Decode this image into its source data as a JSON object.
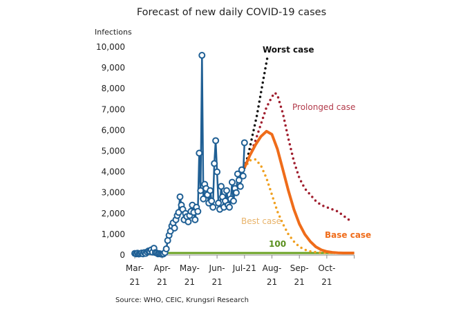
{
  "chart_data": {
    "type": "line",
    "title": "Forecast of new daily COVID-19 cases",
    "ylabel": "Infections",
    "xlabel": "",
    "ylim": [
      0,
      10000
    ],
    "yticks": [
      0,
      1000,
      2000,
      3000,
      4000,
      5000,
      6000,
      7000,
      8000,
      9000,
      10000
    ],
    "ytick_labels": [
      "0",
      "1,000",
      "2,000",
      "3,000",
      "4,000",
      "5,000",
      "6,000",
      "7,000",
      "8,000",
      "9,000",
      "10,000"
    ],
    "x_unit": "months since Mar-21",
    "xlim": [
      0,
      8
    ],
    "xticks": [
      0,
      1,
      2,
      3,
      4,
      5,
      6,
      7
    ],
    "xtick_labels": [
      [
        "Mar-",
        "21"
      ],
      [
        "Apr-",
        "21"
      ],
      [
        "May-",
        "21"
      ],
      [
        "Jun-",
        "21"
      ],
      [
        "Jul-21",
        ""
      ],
      [
        "Aug-",
        "21"
      ],
      [
        "Sep-",
        "21"
      ],
      [
        "Oct-",
        "21"
      ]
    ],
    "grid": false,
    "legend": "inline annotations",
    "series": [
      {
        "name": "Actual",
        "style": "line-with-circle-markers",
        "color": "#1f5f94",
        "x": [
          0.0,
          0.05,
          0.1,
          0.15,
          0.2,
          0.25,
          0.3,
          0.35,
          0.4,
          0.45,
          0.5,
          0.55,
          0.6,
          0.65,
          0.7,
          0.75,
          0.8,
          0.85,
          0.9,
          0.95,
          1.0,
          1.05,
          1.1,
          1.15,
          1.2,
          1.25,
          1.3,
          1.35,
          1.4,
          1.45,
          1.5,
          1.55,
          1.6,
          1.65,
          1.7,
          1.75,
          1.8,
          1.85,
          1.9,
          1.95,
          2.0,
          2.05,
          2.1,
          2.15,
          2.2,
          2.25,
          2.3,
          2.35,
          2.4,
          2.45,
          2.5,
          2.55,
          2.6,
          2.65,
          2.7,
          2.75,
          2.8,
          2.85,
          2.9,
          2.95,
          3.0,
          3.05,
          3.1,
          3.15,
          3.2,
          3.25,
          3.3,
          3.35,
          3.4,
          3.45,
          3.5,
          3.55,
          3.6,
          3.65,
          3.7,
          3.75,
          3.8,
          3.85,
          3.9,
          3.95,
          4.0
        ],
        "values": [
          80,
          60,
          90,
          50,
          70,
          100,
          60,
          120,
          80,
          150,
          200,
          180,
          250,
          140,
          330,
          120,
          100,
          60,
          70,
          50,
          40,
          60,
          120,
          300,
          700,
          950,
          1150,
          1400,
          1550,
          1300,
          1700,
          1900,
          2050,
          2800,
          2400,
          2200,
          1700,
          2000,
          1850,
          1600,
          1900,
          2100,
          2400,
          2050,
          1700,
          2300,
          2100,
          4900,
          3100,
          9600,
          2700,
          3400,
          3200,
          2900,
          2500,
          3100,
          2600,
          2300,
          4400,
          5500,
          4000,
          2500,
          2200,
          3300,
          2800,
          2300,
          2600,
          3100,
          2400,
          2300,
          2700,
          3500,
          2600,
          3200,
          3000,
          3900,
          3600,
          3300,
          4100,
          3800,
          5400
        ]
      },
      {
        "name": "Worst case",
        "style": "dotted",
        "color": "#111111",
        "x": [
          4.0,
          4.15,
          4.3,
          4.45,
          4.6,
          4.75,
          4.85
        ],
        "values": [
          4200,
          4900,
          5800,
          6700,
          7800,
          8900,
          9600
        ]
      },
      {
        "name": "Prolonged case",
        "style": "dotted",
        "color": "#a01e2e",
        "x": [
          4.0,
          4.2,
          4.4,
          4.6,
          4.8,
          5.0,
          5.1,
          5.2,
          5.4,
          5.6,
          5.8,
          6.0,
          6.2,
          6.4,
          6.6,
          6.8,
          7.0,
          7.2,
          7.4,
          7.6,
          7.8
        ],
        "values": [
          4200,
          4800,
          5500,
          6300,
          7100,
          7600,
          7800,
          7700,
          6800,
          5600,
          4500,
          3700,
          3200,
          2900,
          2600,
          2400,
          2300,
          2200,
          2100,
          1900,
          1700
        ]
      },
      {
        "name": "Base case",
        "style": "solid",
        "color": "#ef6c1a",
        "x": [
          4.0,
          4.2,
          4.4,
          4.6,
          4.8,
          5.0,
          5.2,
          5.4,
          5.6,
          5.8,
          6.0,
          6.2,
          6.4,
          6.6,
          6.8,
          7.0,
          7.2,
          7.4,
          7.6,
          7.8,
          8.0
        ],
        "values": [
          4200,
          4800,
          5300,
          5700,
          5950,
          5800,
          5100,
          4100,
          3100,
          2200,
          1500,
          1000,
          650,
          400,
          250,
          170,
          130,
          110,
          100,
          100,
          100
        ]
      },
      {
        "name": "Best case",
        "style": "dotted",
        "color": "#f0a020",
        "x": [
          4.0,
          4.2,
          4.4,
          4.6,
          4.8,
          5.0,
          5.2,
          5.4,
          5.6,
          5.8,
          6.0,
          6.2,
          6.4,
          6.6,
          6.8,
          7.0,
          7.2,
          7.4,
          7.6,
          7.8
        ],
        "values": [
          4200,
          4550,
          4600,
          4300,
          3700,
          2900,
          2100,
          1500,
          1000,
          650,
          400,
          260,
          180,
          140,
          120,
          110,
          100,
          100,
          100,
          100
        ]
      },
      {
        "name": "100",
        "style": "solid",
        "color": "#6aa121",
        "x": [
          1.1,
          8.0
        ],
        "values": [
          100,
          100
        ]
      }
    ],
    "annotations": [
      {
        "text": "Worst case",
        "color": "#111111",
        "bold": true
      },
      {
        "text": "Prolonged case",
        "color": "#b23a4a",
        "bold": false
      },
      {
        "text": "Base case",
        "color": "#ef6c1a",
        "bold": true
      },
      {
        "text": "Best case",
        "color": "#e8b36a",
        "bold": false
      },
      {
        "text": "100",
        "color": "#5a8f1e",
        "bold": true
      }
    ],
    "source": "Source: WHO, CEIC, Krungsri Research"
  }
}
